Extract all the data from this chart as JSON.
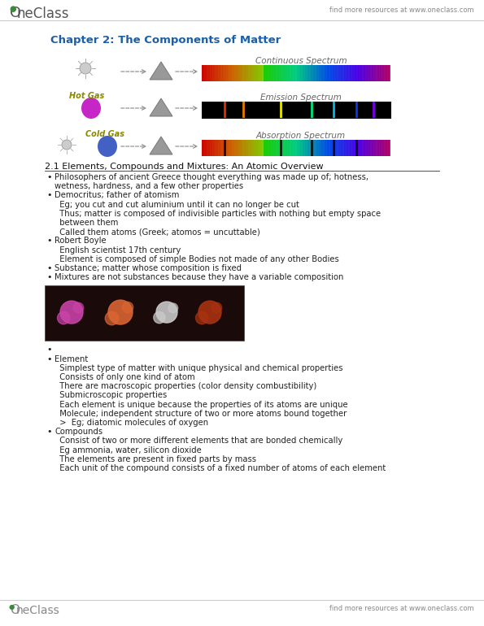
{
  "bg_color": "#ffffff",
  "header_logo_text": "OneClass",
  "header_right_text": "find more resources at www.oneclass.com",
  "footer_logo_text": "OneClass",
  "footer_right_text": "find more resources at www.oneclass.com",
  "chapter_title": "Chapter 2: The Components of Matter",
  "spectrum_labels": [
    "Continuous Spectrum",
    "Emission Spectrum",
    "Absorption Spectrum"
  ],
  "diagram_labels": [
    "",
    "Hot Gas",
    "Cold Gas"
  ],
  "section_title": "2.1 Elements, Compounds and Mixtures: An Atomic Overview",
  "header_color": "#1a5fa8",
  "text_color": "#222222",
  "subtext_color": "#555555",
  "line_color": "#cccccc"
}
